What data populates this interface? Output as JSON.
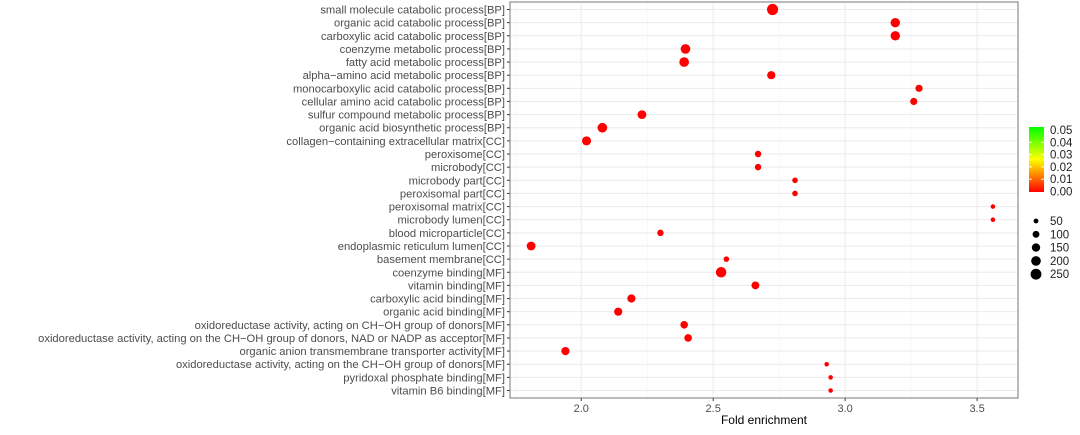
{
  "chart_data": {
    "type": "scatter",
    "xlabel": "Fold enrichment",
    "ylabel": "",
    "xlim": [
      1.73,
      3.655
    ],
    "xticks": [
      2.0,
      2.5,
      3.0,
      3.5
    ],
    "xtick_labels": [
      "2.0",
      "2.5",
      "3.0",
      "3.5"
    ],
    "grid": true,
    "categories": [
      "small molecule catabolic process[BP]",
      "organic acid catabolic process[BP]",
      "carboxylic acid catabolic process[BP]",
      "coenzyme metabolic process[BP]",
      "fatty acid metabolic process[BP]",
      "alpha−amino acid metabolic process[BP]",
      "monocarboxylic acid catabolic process[BP]",
      "cellular amino acid catabolic process[BP]",
      "sulfur compound metabolic process[BP]",
      "organic acid biosynthetic process[BP]",
      "collagen−containing extracellular matrix[CC]",
      "peroxisome[CC]",
      "microbody[CC]",
      "microbody part[CC]",
      "peroxisomal part[CC]",
      "peroxisomal matrix[CC]",
      "microbody lumen[CC]",
      "blood microparticle[CC]",
      "endoplasmic reticulum lumen[CC]",
      "basement membrane[CC]",
      "coenzyme binding[MF]",
      "vitamin binding[MF]",
      "carboxylic acid binding[MF]",
      "organic acid binding[MF]",
      "oxidoreductase activity, acting on CH−OH group of donors[MF]",
      "oxidoreductase activity, acting on the CH−OH group of donors, NAD or NADP as acceptor[MF]",
      "organic anion transmembrane transporter activity[MF]",
      "oxidoreductase activity, acting on the CH−OH group of donors[MF]",
      "pyridoxal phosphate binding[MF]",
      "vitamin B6 binding[MF]"
    ],
    "x": [
      2.725,
      3.19,
      3.19,
      2.395,
      2.39,
      2.72,
      3.28,
      3.26,
      2.23,
      2.08,
      2.02,
      2.67,
      2.67,
      2.81,
      2.81,
      3.56,
      3.56,
      2.3,
      1.81,
      2.55,
      2.53,
      2.66,
      2.19,
      2.14,
      2.39,
      2.405,
      1.94,
      2.93,
      2.945,
      2.945
    ],
    "size": [
      240,
      170,
      170,
      180,
      180,
      130,
      100,
      100,
      150,
      180,
      160,
      80,
      80,
      60,
      60,
      40,
      40,
      80,
      150,
      60,
      210,
      120,
      130,
      130,
      110,
      110,
      130,
      40,
      40,
      40
    ],
    "color_value": [
      0,
      0,
      0,
      0,
      0,
      0,
      0,
      0,
      0,
      0,
      0,
      0,
      0,
      0,
      0,
      0,
      0,
      0,
      0,
      0,
      0,
      0,
      0,
      0,
      0,
      0,
      0,
      0,
      0,
      0
    ],
    "color_legend": {
      "labels": [
        "0.05",
        "0.04",
        "0.03",
        "0.02",
        "0.01",
        "0.00"
      ],
      "range": [
        0,
        0.05
      ],
      "colors": [
        "#ff0000",
        "#ffff00",
        "#00ff00"
      ]
    },
    "size_legend": {
      "values": [
        50,
        100,
        150,
        200,
        250
      ],
      "labels": [
        "50",
        "100",
        "150",
        "200",
        "250"
      ]
    },
    "point_color": "#ff0000"
  }
}
